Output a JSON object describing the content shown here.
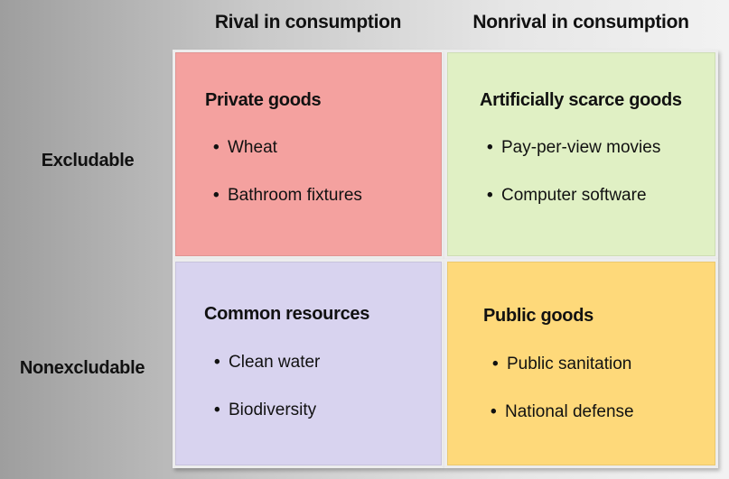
{
  "columns": [
    "Rival in consumption",
    "Nonrival in consumption"
  ],
  "rows": [
    "Excludable",
    "Nonexcludable"
  ],
  "bullet_char": "•",
  "cells": {
    "private": {
      "title": "Private goods",
      "items": [
        "Wheat",
        "Bathroom fixtures"
      ],
      "color": "#f4a19f"
    },
    "scarce": {
      "title": "Artificially scarce goods",
      "items": [
        "Pay-per-view movies",
        "Computer software"
      ],
      "color": "#e0f0c4"
    },
    "common": {
      "title": "Common resources",
      "items": [
        "Clean water",
        "Biodiversity"
      ],
      "color": "#d8d3ef"
    },
    "public": {
      "title": "Public goods",
      "items": [
        "Public sanitation",
        "National defense"
      ],
      "color": "#fed97a"
    }
  }
}
